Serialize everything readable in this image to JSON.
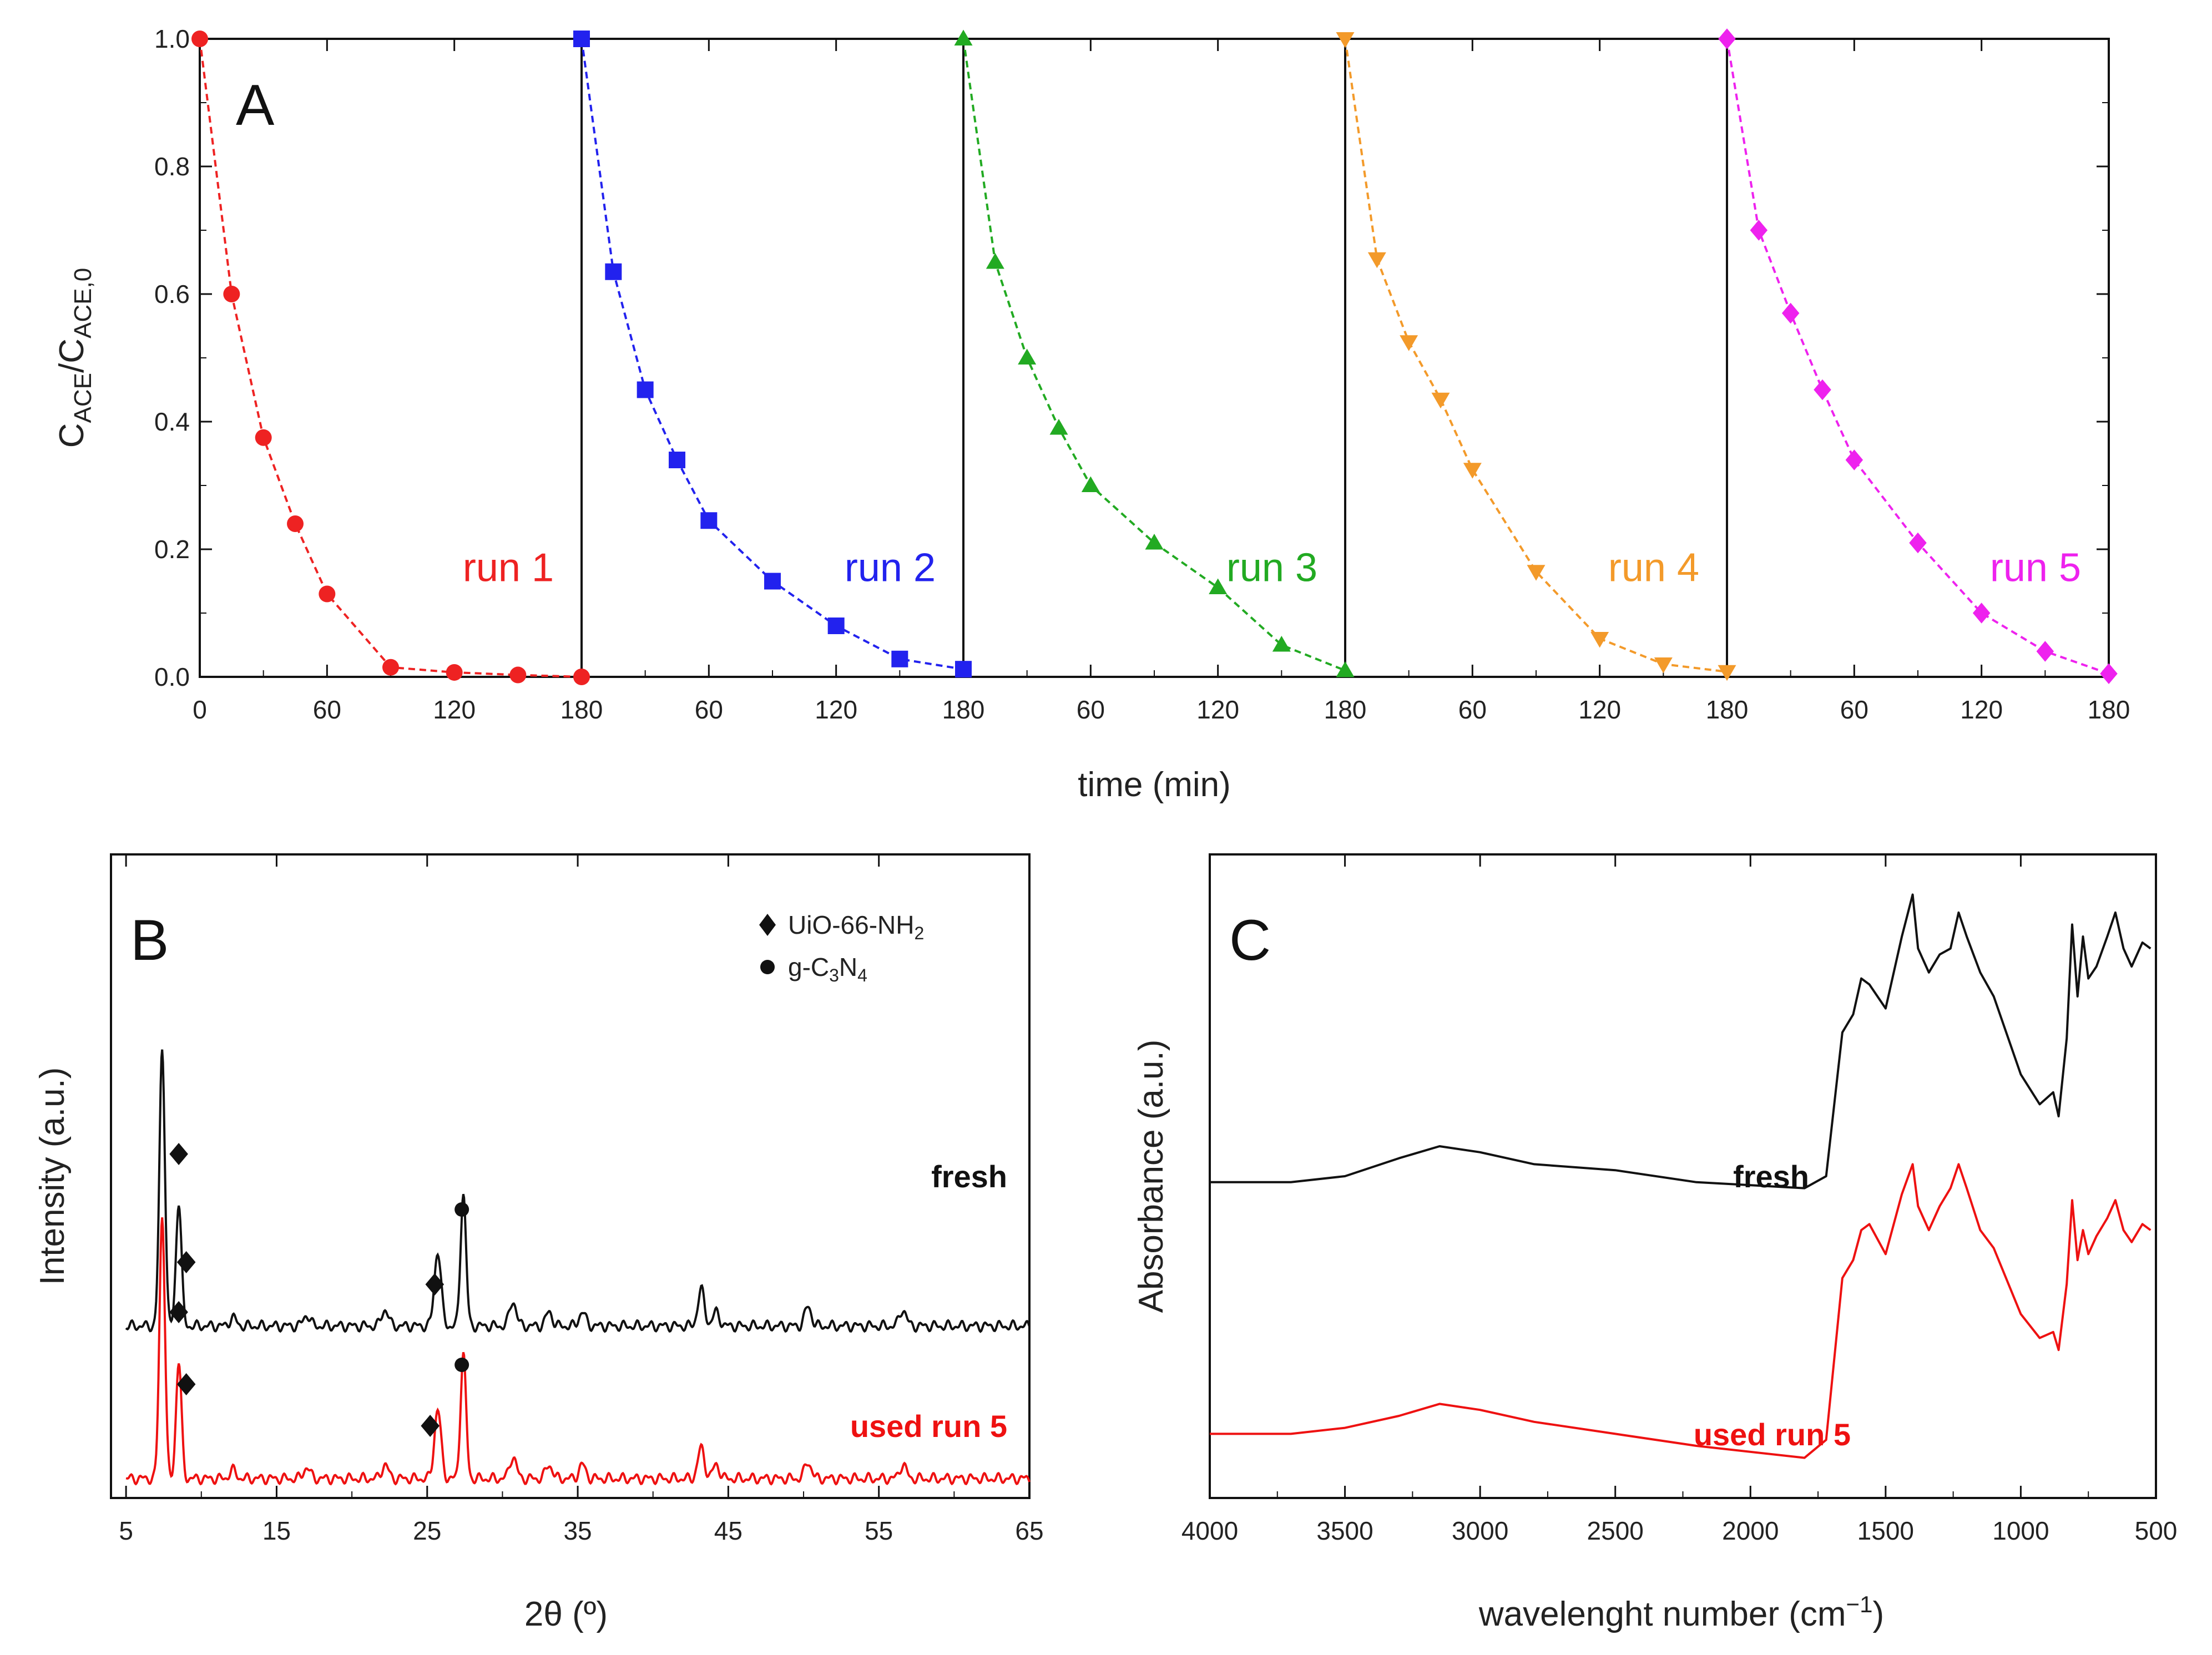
{
  "chart_data": [
    {
      "id": "A",
      "type": "line",
      "panel_label": "A",
      "xlabel": "time (min)",
      "ylabel_main": "C",
      "ylabel_sub1": "ACE",
      "ylabel_sep": "/C",
      "ylabel_sub2": "ACE,0",
      "ylim": [
        0,
        1.0
      ],
      "yticks": [
        "0.0",
        "0.2",
        "0.4",
        "0.6",
        "0.8",
        "1.0"
      ],
      "x_range_per_run": [
        0,
        180
      ],
      "xticks": [
        "0",
        "60",
        "120",
        "180",
        "60",
        "120",
        "180",
        "60",
        "120",
        "180",
        "60",
        "120",
        "180",
        "60",
        "120",
        "180"
      ],
      "series": [
        {
          "name": "run 1",
          "color": "#ee2222",
          "marker": "circle",
          "x": [
            0,
            15,
            30,
            45,
            60,
            90,
            120,
            150,
            180
          ],
          "y": [
            1.0,
            0.6,
            0.375,
            0.24,
            0.13,
            0.015,
            0.007,
            0.003,
            0.0
          ]
        },
        {
          "name": "run 2",
          "color": "#2222ee",
          "marker": "square",
          "x": [
            0,
            15,
            30,
            45,
            60,
            90,
            120,
            150,
            180
          ],
          "y": [
            1.0,
            0.635,
            0.45,
            0.34,
            0.245,
            0.15,
            0.08,
            0.028,
            0.012
          ]
        },
        {
          "name": "run 3",
          "color": "#22aa22",
          "marker": "triangle-up",
          "x": [
            0,
            15,
            30,
            45,
            60,
            90,
            120,
            150,
            180
          ],
          "y": [
            1.0,
            0.65,
            0.5,
            0.39,
            0.3,
            0.21,
            0.14,
            0.05,
            0.01
          ]
        },
        {
          "name": "run 4",
          "color": "#f39a2a",
          "marker": "triangle-down",
          "x": [
            0,
            15,
            30,
            45,
            60,
            90,
            120,
            150,
            180
          ],
          "y": [
            1.0,
            0.655,
            0.525,
            0.435,
            0.325,
            0.165,
            0.06,
            0.02,
            0.008
          ]
        },
        {
          "name": "run 5",
          "color": "#ee22ee",
          "marker": "diamond",
          "x": [
            0,
            15,
            30,
            45,
            60,
            90,
            120,
            150,
            180
          ],
          "y": [
            1.0,
            0.7,
            0.57,
            0.45,
            0.34,
            0.21,
            0.1,
            0.04,
            0.005
          ]
        }
      ]
    },
    {
      "id": "B",
      "type": "line",
      "panel_label": "B",
      "xlabel": "2θ (º)",
      "ylabel": "Intensity (a.u.)",
      "xlim": [
        4,
        65
      ],
      "xticks": [
        "5",
        "15",
        "25",
        "35",
        "45",
        "55",
        "65"
      ],
      "legend": [
        {
          "marker": "diamond",
          "label_main": "UiO-66-NH",
          "label_sub": "2"
        },
        {
          "marker": "circle",
          "label_main": "g-C",
          "label_sub1": "3",
          "label_mid": "N",
          "label_sub2": "4"
        }
      ],
      "series": [
        {
          "name": "fresh",
          "color": "#111111",
          "offset": 0.55,
          "peaks": [
            [
              7.4,
              1.0
            ],
            [
              8.5,
              0.45
            ],
            [
              25.7,
              0.27
            ],
            [
              27.4,
              0.48
            ],
            [
              12.1,
              0.03
            ],
            [
              17.0,
              0.04
            ],
            [
              22.2,
              0.06
            ],
            [
              30.7,
              0.09
            ],
            [
              33.1,
              0.05
            ],
            [
              35.3,
              0.05
            ],
            [
              43.2,
              0.13
            ],
            [
              44.2,
              0.05
            ],
            [
              50.3,
              0.07
            ],
            [
              56.6,
              0.06
            ]
          ]
        },
        {
          "name": "used run 5",
          "color": "#ee1111",
          "offset": 0.0,
          "peaks": [
            [
              7.4,
              0.95
            ],
            [
              8.5,
              0.42
            ],
            [
              25.7,
              0.25
            ],
            [
              27.4,
              0.45
            ],
            [
              12.1,
              0.03
            ],
            [
              17.0,
              0.04
            ],
            [
              22.2,
              0.05
            ],
            [
              30.7,
              0.08
            ],
            [
              33.1,
              0.05
            ],
            [
              35.3,
              0.05
            ],
            [
              43.2,
              0.11
            ],
            [
              44.2,
              0.05
            ],
            [
              50.3,
              0.06
            ],
            [
              56.6,
              0.05
            ]
          ]
        }
      ],
      "markers": [
        {
          "series": "fresh",
          "marker": "diamond",
          "x": 8.5,
          "y": 1.17
        },
        {
          "series": "fresh",
          "marker": "diamond",
          "x": 9.0,
          "y": 0.78
        },
        {
          "series": "fresh",
          "marker": "diamond",
          "x": 25.5,
          "y": 0.7
        },
        {
          "series": "fresh",
          "marker": "circle",
          "x": 27.3,
          "y": 0.97
        },
        {
          "series": "used run 5",
          "marker": "diamond",
          "x": 8.5,
          "y": 0.6
        },
        {
          "series": "used run 5",
          "marker": "diamond",
          "x": 9.0,
          "y": 0.34
        },
        {
          "series": "used run 5",
          "marker": "diamond",
          "x": 25.2,
          "y": 0.19
        },
        {
          "series": "used run 5",
          "marker": "circle",
          "x": 27.3,
          "y": 0.41
        }
      ]
    },
    {
      "id": "C",
      "type": "line",
      "panel_label": "C",
      "xlabel_main": "wavelenght number (cm",
      "xlabel_sup": "−1",
      "xlabel_end": ")",
      "ylabel": "Absorbance (a.u.)",
      "xlim": [
        4000,
        500
      ],
      "xticks": [
        "4000",
        "3500",
        "3000",
        "2500",
        "2000",
        "1500",
        "1000",
        "500"
      ],
      "series": [
        {
          "name": "fresh",
          "color": "#111111",
          "points": [
            [
              4000,
              0.49
            ],
            [
              3700,
              0.49
            ],
            [
              3500,
              0.5
            ],
            [
              3300,
              0.53
            ],
            [
              3150,
              0.55
            ],
            [
              3000,
              0.54
            ],
            [
              2800,
              0.52
            ],
            [
              2500,
              0.51
            ],
            [
              2200,
              0.49
            ],
            [
              1800,
              0.48
            ],
            [
              1720,
              0.5
            ],
            [
              1660,
              0.74
            ],
            [
              1620,
              0.77
            ],
            [
              1590,
              0.83
            ],
            [
              1560,
              0.82
            ],
            [
              1500,
              0.78
            ],
            [
              1440,
              0.9
            ],
            [
              1400,
              0.97
            ],
            [
              1380,
              0.88
            ],
            [
              1340,
              0.84
            ],
            [
              1300,
              0.87
            ],
            [
              1260,
              0.88
            ],
            [
              1230,
              0.94
            ],
            [
              1200,
              0.9
            ],
            [
              1150,
              0.84
            ],
            [
              1100,
              0.8
            ],
            [
              1000,
              0.67
            ],
            [
              930,
              0.62
            ],
            [
              880,
              0.64
            ],
            [
              860,
              0.6
            ],
            [
              830,
              0.73
            ],
            [
              810,
              0.92
            ],
            [
              790,
              0.8
            ],
            [
              770,
              0.9
            ],
            [
              750,
              0.83
            ],
            [
              720,
              0.85
            ],
            [
              680,
              0.9
            ],
            [
              650,
              0.94
            ],
            [
              620,
              0.88
            ],
            [
              590,
              0.85
            ],
            [
              550,
              0.89
            ],
            [
              520,
              0.88
            ]
          ]
        },
        {
          "name": "used run 5",
          "color": "#ee1111",
          "points": [
            [
              4000,
              0.07
            ],
            [
              3700,
              0.07
            ],
            [
              3500,
              0.08
            ],
            [
              3300,
              0.1
            ],
            [
              3150,
              0.12
            ],
            [
              3000,
              0.11
            ],
            [
              2800,
              0.09
            ],
            [
              2500,
              0.07
            ],
            [
              2200,
              0.05
            ],
            [
              1800,
              0.03
            ],
            [
              1720,
              0.06
            ],
            [
              1660,
              0.33
            ],
            [
              1620,
              0.36
            ],
            [
              1590,
              0.41
            ],
            [
              1560,
              0.42
            ],
            [
              1500,
              0.37
            ],
            [
              1440,
              0.47
            ],
            [
              1400,
              0.52
            ],
            [
              1380,
              0.45
            ],
            [
              1340,
              0.41
            ],
            [
              1300,
              0.45
            ],
            [
              1260,
              0.48
            ],
            [
              1230,
              0.52
            ],
            [
              1200,
              0.48
            ],
            [
              1150,
              0.41
            ],
            [
              1100,
              0.38
            ],
            [
              1000,
              0.27
            ],
            [
              930,
              0.23
            ],
            [
              880,
              0.24
            ],
            [
              860,
              0.21
            ],
            [
              830,
              0.32
            ],
            [
              810,
              0.46
            ],
            [
              790,
              0.36
            ],
            [
              770,
              0.41
            ],
            [
              750,
              0.37
            ],
            [
              720,
              0.4
            ],
            [
              680,
              0.43
            ],
            [
              650,
              0.46
            ],
            [
              620,
              0.41
            ],
            [
              590,
              0.39
            ],
            [
              550,
              0.42
            ],
            [
              520,
              0.41
            ]
          ]
        }
      ]
    }
  ]
}
